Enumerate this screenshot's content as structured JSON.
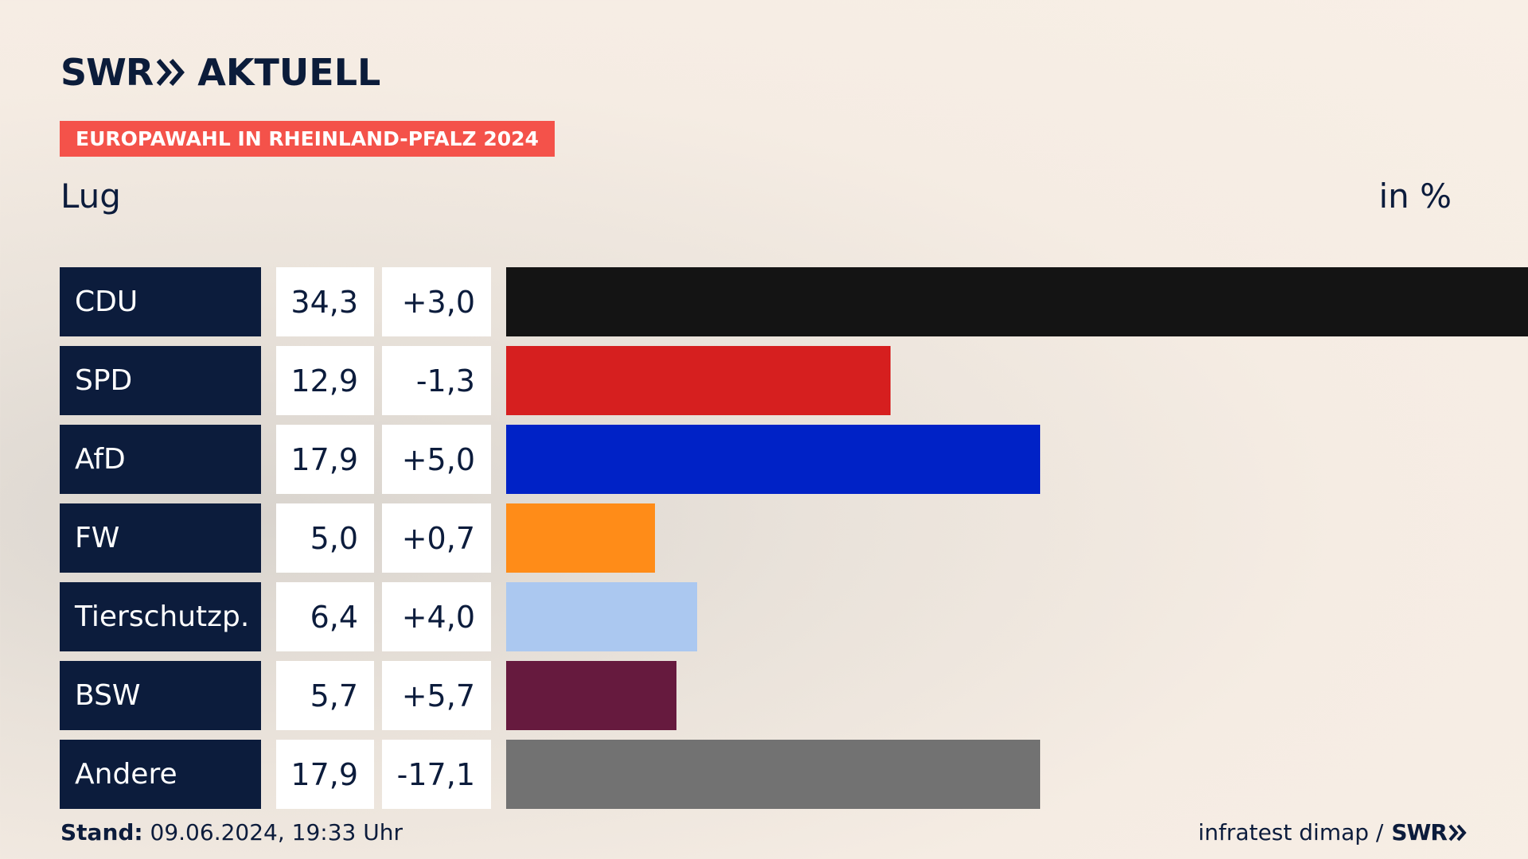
{
  "header": {
    "logo_swr": "SWR",
    "logo_aktuell": "AKTUELL",
    "banner": "EUROPAWAHL IN RHEINLAND-PFALZ 2024",
    "region": "Lug",
    "unit": "in %"
  },
  "chart_data": {
    "type": "bar",
    "orientation": "horizontal",
    "title": "EUROPAWAHL IN RHEINLAND-PFALZ 2024",
    "subtitle": "Lug",
    "unit": "in %",
    "categories": [
      "CDU",
      "SPD",
      "AfD",
      "FW",
      "Tierschutzp.",
      "BSW",
      "Andere"
    ],
    "values": [
      34.3,
      12.9,
      17.9,
      5.0,
      6.4,
      5.7,
      17.9
    ],
    "value_labels": [
      "34,3",
      "12,9",
      "17,9",
      "5,0",
      "6,4",
      "5,7",
      "17,9"
    ],
    "diff_labels": [
      "+3,0",
      "-1,3",
      "+5,0",
      "+0,7",
      "+4,0",
      "+5,7",
      "-17,1"
    ],
    "colors": [
      "#141414",
      "#d61f1f",
      "#0022c6",
      "#ff8c18",
      "#abc8f0",
      "#661a3e",
      "#727272"
    ],
    "xlim": [
      0,
      34.3
    ]
  },
  "footer": {
    "stand_label": "Stand:",
    "stand_value": "09.06.2024, 19:33 Uhr",
    "source": "infratest dimap /",
    "source_logo": "SWR"
  }
}
